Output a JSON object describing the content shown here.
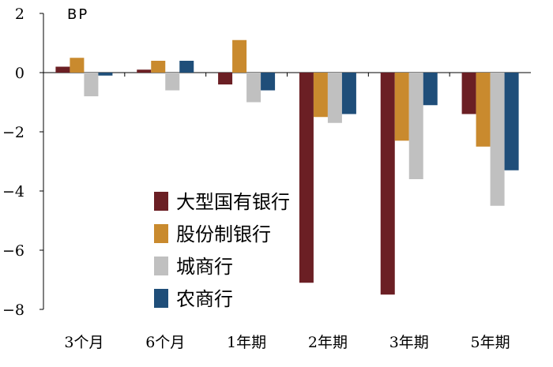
{
  "chart_data": {
    "type": "bar",
    "unit_label": "BP",
    "categories": [
      "3个月",
      "6个月",
      "1年期",
      "2年期",
      "3年期",
      "5年期"
    ],
    "series": [
      {
        "name": "大型国有银行",
        "color": "#6b1f24",
        "values": [
          0.2,
          0.1,
          -0.4,
          -7.1,
          -7.5,
          -1.4
        ]
      },
      {
        "name": "股份制银行",
        "color": "#c98a2e",
        "values": [
          0.5,
          0.4,
          1.1,
          -1.5,
          -2.3,
          -2.5
        ]
      },
      {
        "name": "城商行",
        "color": "#c0c0c0",
        "values": [
          -0.8,
          -0.6,
          -1.0,
          -1.7,
          -3.6,
          -4.5
        ]
      },
      {
        "name": "农商行",
        "color": "#1f4e79",
        "values": [
          -0.1,
          0.4,
          -0.6,
          -1.4,
          -1.1,
          -3.3
        ]
      }
    ],
    "ylim": [
      -8,
      2
    ],
    "yticks": [
      2,
      0,
      -2,
      -4,
      -6,
      -8
    ],
    "legend_position": "lower-left"
  }
}
